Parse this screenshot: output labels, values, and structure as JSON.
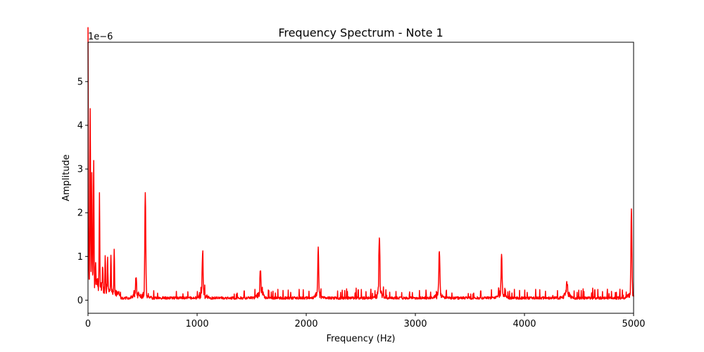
{
  "chart_data": {
    "type": "line",
    "title": "Frequency Spectrum - Note 1",
    "xlabel": "Frequency (Hz)",
    "ylabel": "Amplitude",
    "y_offset_text": "1e−6",
    "xlim": [
      0,
      5000
    ],
    "ylim": [
      -0.3,
      5.9
    ],
    "y_scale_factor": 1e-06,
    "x_ticks": [
      0,
      1000,
      2000,
      3000,
      4000,
      5000
    ],
    "x_tick_labels": [
      "0",
      "1000",
      "2000",
      "3000",
      "4000",
      "5000"
    ],
    "y_ticks": [
      0,
      1,
      2,
      3,
      4,
      5
    ],
    "y_tick_labels": [
      "0",
      "1",
      "2",
      "3",
      "4",
      "5"
    ],
    "grid": false,
    "series": [
      {
        "color": "#ff0000",
        "peaks": [
          {
            "x": 0,
            "y": 5.65
          },
          {
            "x": 20,
            "y": 3.95
          },
          {
            "x": 35,
            "y": 2.45
          },
          {
            "x": 52,
            "y": 2.85
          },
          {
            "x": 70,
            "y": 0.6
          },
          {
            "x": 105,
            "y": 2.02
          },
          {
            "x": 135,
            "y": 0.55
          },
          {
            "x": 158,
            "y": 0.82
          },
          {
            "x": 180,
            "y": 0.7
          },
          {
            "x": 210,
            "y": 0.88
          },
          {
            "x": 240,
            "y": 1.03
          },
          {
            "x": 440,
            "y": 0.37
          },
          {
            "x": 525,
            "y": 2.3
          },
          {
            "x": 1050,
            "y": 0.9
          },
          {
            "x": 1580,
            "y": 0.52
          },
          {
            "x": 2110,
            "y": 0.98
          },
          {
            "x": 2670,
            "y": 1.35
          },
          {
            "x": 3220,
            "y": 1.05
          },
          {
            "x": 3790,
            "y": 0.92
          },
          {
            "x": 4390,
            "y": 0.27
          },
          {
            "x": 4980,
            "y": 1.87
          }
        ]
      }
    ]
  }
}
